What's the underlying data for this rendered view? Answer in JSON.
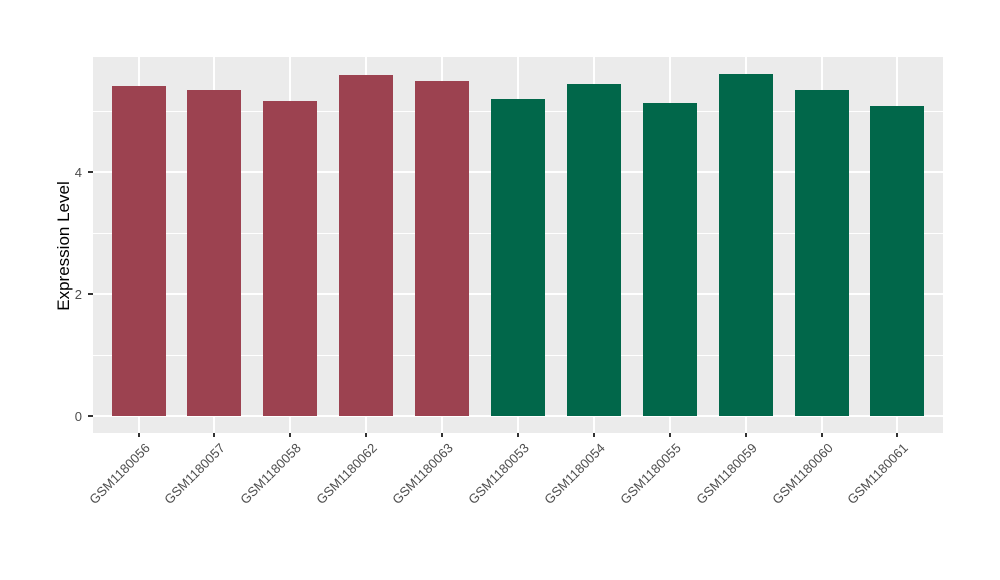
{
  "figure": {
    "background": "#FFFFFF",
    "panel_background": "#EBEBEB",
    "grid_color": "#FFFFFF",
    "tick_color": "#333333",
    "axis_text_color": "#4D4D4D",
    "axis_title_color": "#000000"
  },
  "chart_data": {
    "type": "bar",
    "title": "",
    "xlabel": "",
    "ylabel": "Expression Level",
    "categories": [
      "GSM1180056",
      "GSM1180057",
      "GSM1180058",
      "GSM1180062",
      "GSM1180063",
      "GSM1180053",
      "GSM1180054",
      "GSM1180055",
      "GSM1180059",
      "GSM1180060",
      "GSM1180061"
    ],
    "values": [
      5.41,
      5.34,
      5.16,
      5.59,
      5.49,
      5.2,
      5.44,
      5.13,
      5.61,
      5.34,
      5.08
    ],
    "bar_colors": [
      "#9C4250",
      "#9C4250",
      "#9C4250",
      "#9C4250",
      "#9C4250",
      "#01674A",
      "#01674A",
      "#01674A",
      "#01674A",
      "#01674A",
      "#01674A"
    ],
    "groups": [
      {
        "color": "#9C4250",
        "samples": [
          "GSM1180056",
          "GSM1180057",
          "GSM1180058",
          "GSM1180062",
          "GSM1180063"
        ]
      },
      {
        "color": "#01674A",
        "samples": [
          "GSM1180053",
          "GSM1180054",
          "GSM1180055",
          "GSM1180059",
          "GSM1180060",
          "GSM1180061"
        ]
      }
    ],
    "y_axis": {
      "ticks": [
        0,
        2,
        4
      ],
      "minor_ticks": [
        1,
        3,
        5
      ],
      "lim": [
        -0.3,
        5.9
      ]
    },
    "x_tick_angle": 45,
    "grid": true,
    "legend": "none"
  }
}
